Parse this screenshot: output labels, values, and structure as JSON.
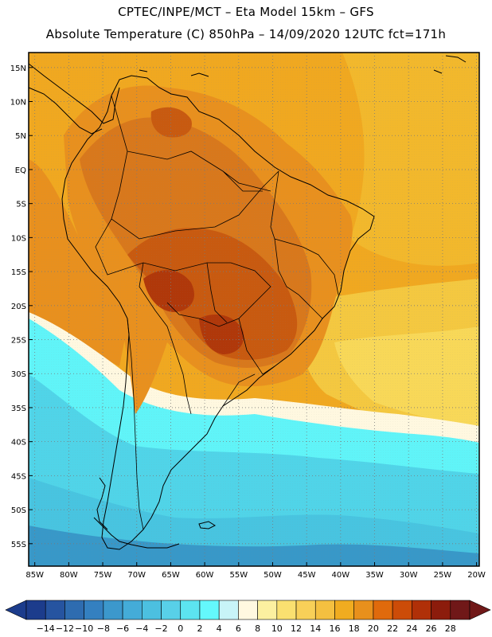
{
  "header": {
    "line1": "CPTEC/INPE/MCT –  Eta Model 15km – GFS",
    "line2": "Absolute Temperature (C) 850hPa – 14/09/2020 12UTC fct=171h"
  },
  "map": {
    "lat_labels": [
      "15N",
      "10N",
      "5N",
      "EQ",
      "5S",
      "10S",
      "15S",
      "20S",
      "25S",
      "30S",
      "35S",
      "40S",
      "45S",
      "50S",
      "55S"
    ],
    "lon_labels": [
      "85W",
      "80W",
      "75W",
      "70W",
      "65W",
      "60W",
      "55W",
      "50W",
      "45W",
      "40W",
      "35W",
      "30W",
      "25W",
      "20W"
    ],
    "lat_values": [
      15,
      10,
      5,
      0,
      -5,
      -10,
      -15,
      -20,
      -25,
      -30,
      -35,
      -40,
      -45,
      -50,
      -55
    ],
    "lon_values": [
      -85,
      -80,
      -75,
      -70,
      -65,
      -60,
      -55,
      -50,
      -45,
      -40,
      -35,
      -30,
      -25,
      -20
    ],
    "colors": {
      "warm_24": "#c85a10",
      "warm_22": "#d8781c",
      "warm_20": "#e8901e",
      "warm_18": "#f0a820",
      "warm_16": "#f2b82c",
      "warm_14": "#f4c840",
      "warm_12": "#f8d858",
      "warm_10": "#fae878",
      "cool_8": "#fff8e0",
      "cool_6": "#d0f4f8",
      "cool_4": "#60f4f8",
      "cool_2": "#58e4f0",
      "cool_0": "#50d4e8",
      "cool_m2": "#48c4e0",
      "cool_m4": "#40b0d8",
      "cool_m6": "#3898c8",
      "cool_m8": "#3080bc",
      "coast": "#000000"
    }
  },
  "colorbar": {
    "labels": [
      "-14",
      "-12",
      "-10",
      "-8",
      "-6",
      "-4",
      "-2",
      "0",
      "2",
      "4",
      "6",
      "8",
      "10",
      "12",
      "14",
      "16",
      "18",
      "20",
      "22",
      "24",
      "26",
      "28"
    ],
    "colors": [
      "#1c3c8c",
      "#2654a0",
      "#2e6cb0",
      "#3480c0",
      "#3c98cc",
      "#44acd8",
      "#4cc0e0",
      "#58d0e8",
      "#5ce4f0",
      "#64f8fc",
      "#c8f4f8",
      "#fff8e0",
      "#fcf0a0",
      "#fae070",
      "#f8d058",
      "#f4c040",
      "#f0ac20",
      "#e8901c",
      "#e06a0c",
      "#cc4c08",
      "#b03008",
      "#8c1c0c",
      "#701818"
    ],
    "arrow_low": "#1c3c8c",
    "arrow_high": "#701818"
  }
}
